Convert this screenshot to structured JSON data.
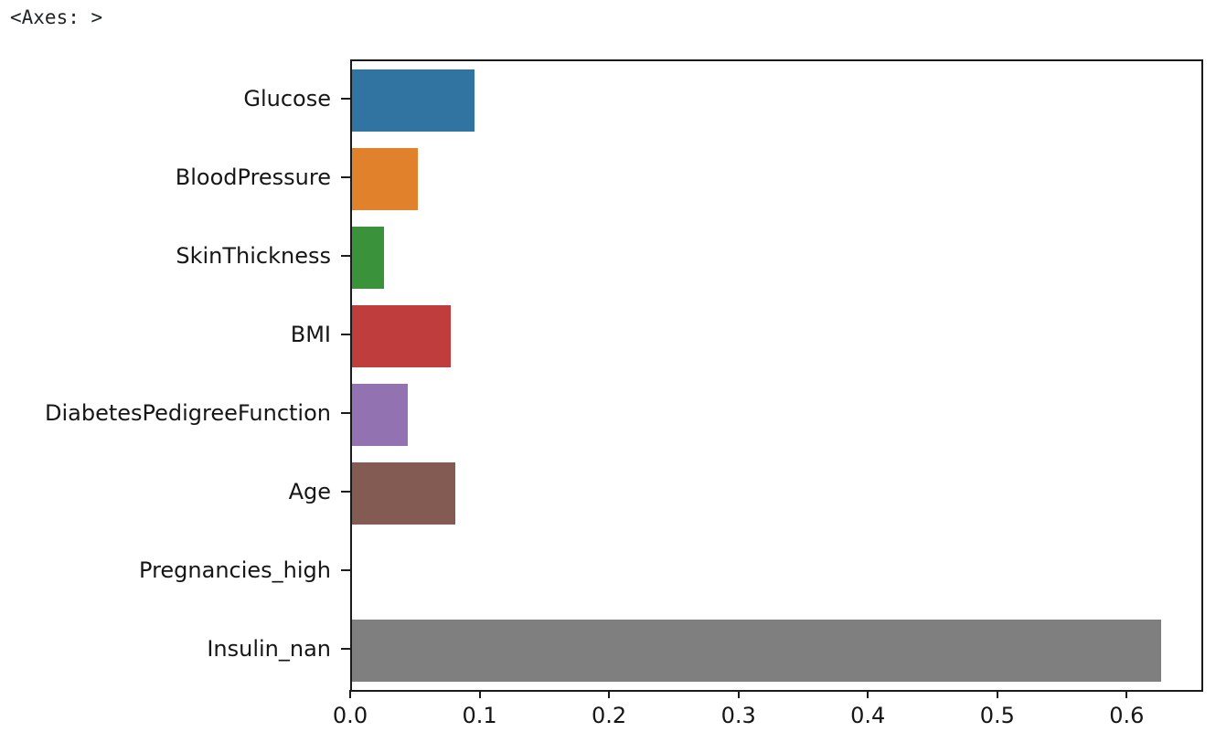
{
  "output_text": "<Axes: >",
  "chart_data": {
    "type": "bar",
    "orientation": "horizontal",
    "title": "",
    "xlabel": "",
    "ylabel": "",
    "categories": [
      "Glucose",
      "BloodPressure",
      "SkinThickness",
      "BMI",
      "DiabetesPedigreeFunction",
      "Age",
      "Pregnancies_high",
      "Insulin_nan"
    ],
    "values": [
      0.095,
      0.051,
      0.0245,
      0.076,
      0.043,
      0.08,
      0.0,
      0.625
    ],
    "bar_colors": [
      "#3274a1",
      "#e1812c",
      "#3a923a",
      "#c03d3e",
      "#9372b2",
      "#845b53",
      "#d684bd",
      "#7f7f7f"
    ],
    "xlim": [
      0,
      0.65625
    ],
    "xticks": [
      0.0,
      0.1,
      0.2,
      0.3,
      0.4,
      0.5,
      0.6
    ],
    "xtick_labels": [
      "0.0",
      "0.1",
      "0.2",
      "0.3",
      "0.4",
      "0.5",
      "0.6"
    ],
    "grid": false,
    "legend_position": "none",
    "colors": {
      "spine": "#1a1a1a",
      "text": "#161616",
      "background": "#ffffff"
    }
  }
}
